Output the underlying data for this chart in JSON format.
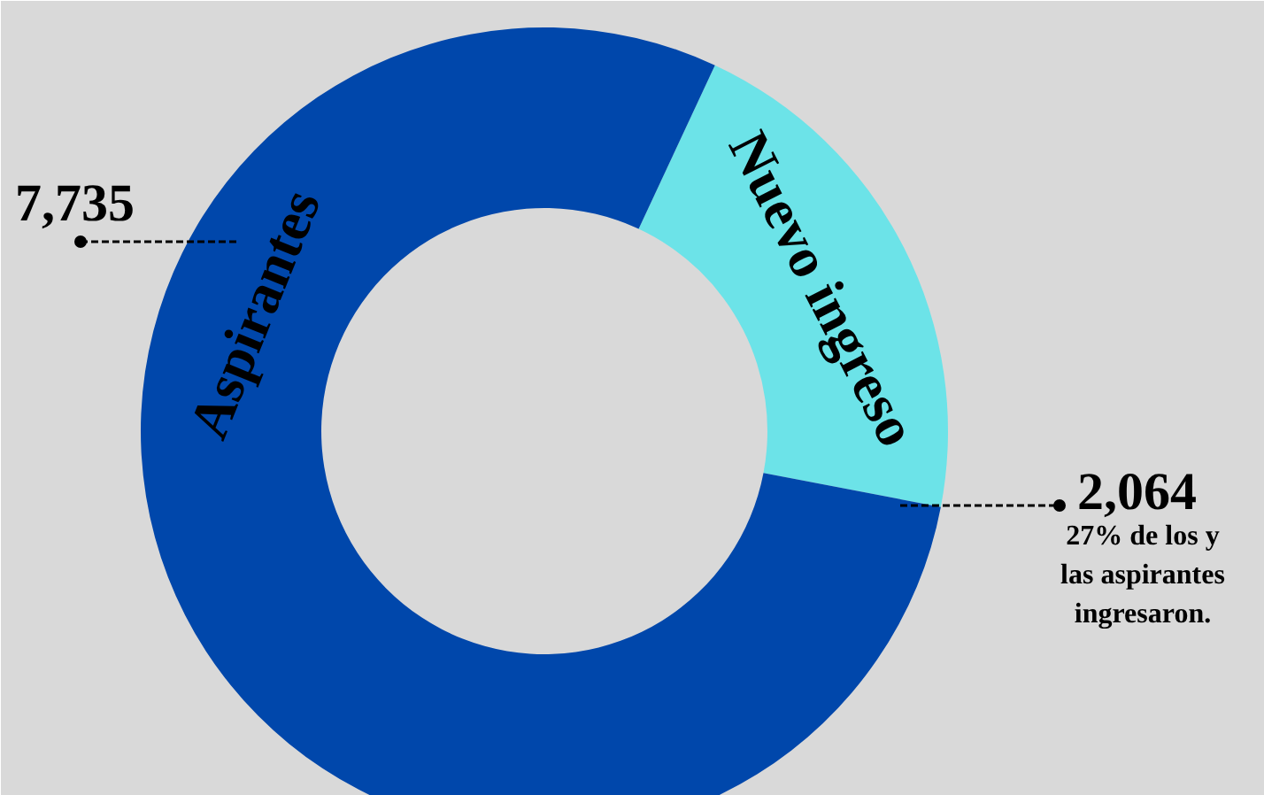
{
  "chart_data": {
    "type": "donut",
    "categories": [
      "Aspirantes",
      "Nuevo ingreso"
    ],
    "values": [
      7735,
      2064
    ],
    "colors": [
      "#0047ab",
      "#6ce3e8"
    ],
    "value_labels": [
      "7,735",
      "2,064"
    ],
    "annotations": [
      "27% de los y\nlas aspirantes\ningresaron."
    ]
  }
}
